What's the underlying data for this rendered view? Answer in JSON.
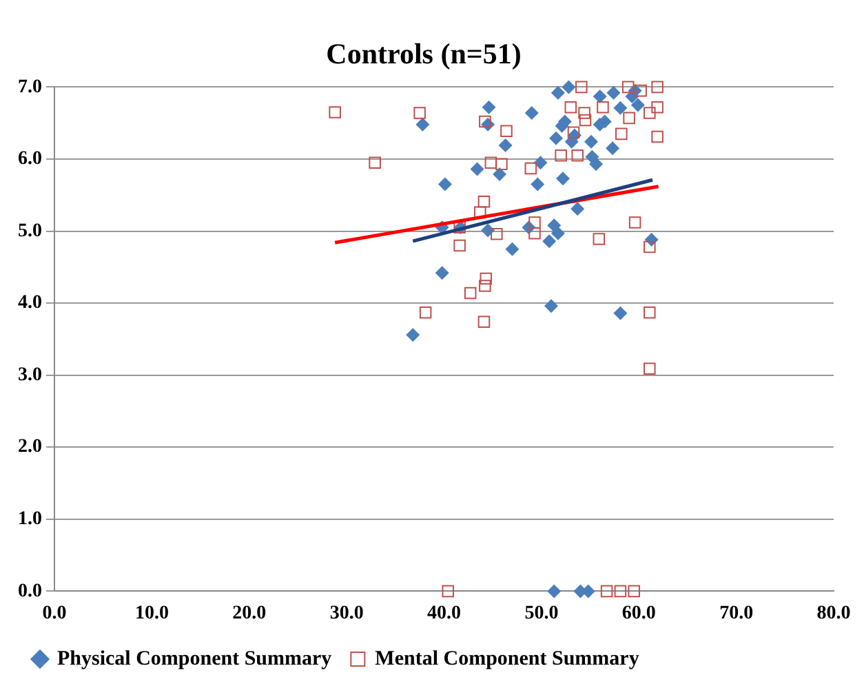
{
  "chart_data": {
    "type": "scatter",
    "title": "Controls (n=51)",
    "xlim": [
      0,
      80
    ],
    "xticks": [
      {
        "value": 0,
        "label": "0.0"
      },
      {
        "value": 10,
        "label": "10.0"
      },
      {
        "value": 20,
        "label": "20.0"
      },
      {
        "value": 30,
        "label": "30.0"
      },
      {
        "value": 40,
        "label": "40.0"
      },
      {
        "value": 50,
        "label": "50.0"
      },
      {
        "value": 60,
        "label": "60.0"
      },
      {
        "value": 70,
        "label": "70.0"
      },
      {
        "value": 80,
        "label": "80.0"
      }
    ],
    "ylim": [
      0,
      7
    ],
    "yticks": [
      {
        "value": 0,
        "label": "0.0"
      },
      {
        "value": 1,
        "label": "1.0"
      },
      {
        "value": 2,
        "label": "2.0"
      },
      {
        "value": 3,
        "label": "3.0"
      },
      {
        "value": 4,
        "label": "4.0"
      },
      {
        "value": 5,
        "label": "5.0"
      },
      {
        "value": 6,
        "label": "6.0"
      },
      {
        "value": 7,
        "label": "7.0"
      }
    ],
    "grid": "y",
    "legend": "bottom",
    "series": [
      {
        "name": "Physical Component Summary",
        "color": "#4a7ebb",
        "marker": "diamond",
        "x": [
          37.8,
          52.8,
          51.7,
          56.0,
          57.4,
          44.6,
          49.0,
          44.5,
          52.1,
          52.4,
          51.5,
          53.4,
          53.1,
          55.1,
          56.0,
          56.5,
          46.3,
          57.3,
          55.2,
          55.6,
          49.9,
          43.4,
          45.7,
          40.1,
          49.6,
          52.2,
          53.7,
          58.1,
          59.3,
          59.9,
          59.6,
          39.8,
          41.7,
          44.5,
          48.7,
          51.3,
          51.7,
          50.8,
          47.0,
          39.8,
          61.3,
          51.0,
          58.1,
          36.8,
          51.3,
          54.0,
          54.8
        ],
        "values": [
          6.48,
          7.0,
          6.92,
          6.87,
          6.92,
          6.72,
          6.64,
          6.48,
          6.46,
          6.52,
          6.29,
          6.33,
          6.24,
          6.24,
          6.48,
          6.52,
          6.19,
          6.15,
          6.03,
          5.93,
          5.95,
          5.86,
          5.79,
          5.65,
          5.65,
          5.73,
          5.31,
          6.71,
          6.87,
          6.75,
          6.95,
          5.05,
          5.05,
          5.01,
          5.05,
          5.08,
          4.97,
          4.86,
          4.75,
          4.42,
          4.88,
          3.96,
          3.86,
          3.56,
          0,
          0,
          0
        ]
      },
      {
        "name": "Mental Component Summary",
        "color": "#c0504d",
        "marker": "square",
        "x": [
          28.8,
          37.5,
          32.9,
          44.2,
          46.4,
          44.8,
          45.9,
          48.9,
          52.0,
          53.7,
          53.0,
          54.1,
          54.4,
          54.5,
          53.3,
          56.3,
          58.2,
          59.0,
          58.9,
          60.2,
          61.9,
          61.1,
          61.9,
          61.9,
          44.1,
          43.7,
          41.6,
          41.6,
          45.4,
          49.3,
          49.3,
          55.9,
          59.6,
          61.1,
          44.3,
          44.2,
          42.7,
          38.1,
          44.1,
          61.1,
          61.1,
          40.4,
          56.7,
          58.1,
          59.5
        ],
        "values": [
          6.65,
          6.64,
          5.95,
          6.52,
          6.39,
          5.95,
          5.93,
          5.87,
          6.05,
          6.05,
          6.72,
          7.0,
          6.64,
          6.54,
          6.37,
          6.72,
          6.35,
          6.57,
          7.0,
          6.95,
          7.0,
          6.64,
          6.72,
          6.31,
          5.41,
          5.26,
          5.05,
          4.8,
          4.96,
          5.12,
          4.97,
          4.89,
          5.12,
          4.78,
          4.34,
          4.24,
          4.14,
          3.87,
          3.74,
          3.87,
          3.09,
          0,
          0,
          0,
          0
        ]
      },
      {
        "type": "line",
        "color": "#1f3f7f",
        "marker": "none",
        "x": [
          36.8,
          61.4
        ],
        "values": [
          4.86,
          5.71
        ]
      },
      {
        "type": "line",
        "color": "#ff0000",
        "marker": "none",
        "x": [
          28.8,
          62.0
        ],
        "values": [
          4.84,
          5.62
        ]
      }
    ]
  }
}
